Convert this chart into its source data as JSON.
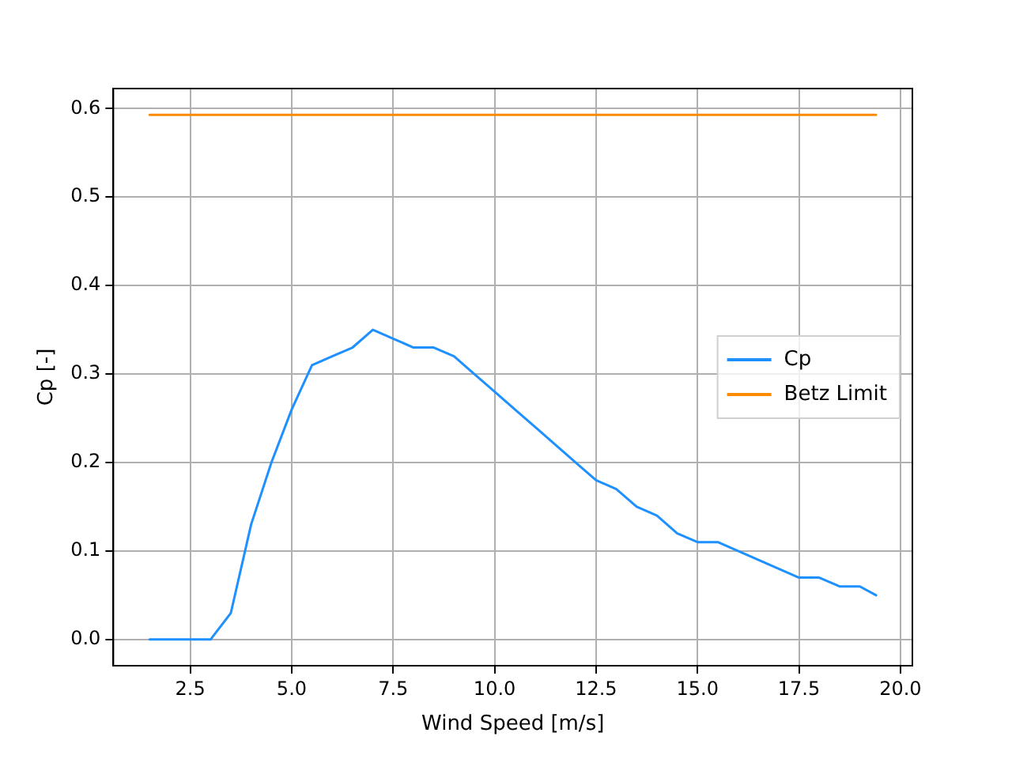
{
  "chart_data": {
    "type": "line",
    "xlabel": "Wind Speed [m/s]",
    "ylabel": "Cp [-]",
    "xlim": [
      0.605,
      20.295
    ],
    "xticks": [
      {
        "value": 2.5,
        "label": "2.5"
      },
      {
        "value": 5,
        "label": "5.0"
      },
      {
        "value": 7.5,
        "label": "7.5"
      },
      {
        "value": 10,
        "label": "10.0"
      },
      {
        "value": 12.5,
        "label": "12.5"
      },
      {
        "value": 15,
        "label": "15.0"
      },
      {
        "value": 17.5,
        "label": "17.5"
      },
      {
        "value": 20,
        "label": "20.0"
      }
    ],
    "ylim": [
      -0.0296,
      0.6226
    ],
    "yticks": [
      {
        "value": 0,
        "label": "0.0"
      },
      {
        "value": 0.1,
        "label": "0.1"
      },
      {
        "value": 0.2,
        "label": "0.2"
      },
      {
        "value": 0.3,
        "label": "0.3"
      },
      {
        "value": 0.4,
        "label": "0.4"
      },
      {
        "value": 0.5,
        "label": "0.5"
      },
      {
        "value": 0.6,
        "label": "0.6"
      }
    ],
    "grid": true,
    "legend": "right",
    "marker": "none",
    "line_style": "solid",
    "series": [
      {
        "name": "Cp",
        "color": "#1e90ff",
        "x": [
          1.5,
          2,
          2.5,
          3,
          3.5,
          4,
          4.5,
          5,
          5.5,
          6,
          6.5,
          7,
          7.5,
          8,
          8.5,
          9,
          9.5,
          10,
          10.5,
          11,
          11.5,
          12,
          12.5,
          13,
          13.5,
          14,
          14.5,
          15,
          15.5,
          16,
          16.5,
          17,
          17.5,
          18,
          18.5,
          19,
          19.4
        ],
        "values": [
          0,
          0,
          0,
          0,
          0.03,
          0.13,
          0.2,
          0.26,
          0.31,
          0.32,
          0.33,
          0.35,
          0.34,
          0.33,
          0.33,
          0.32,
          0.3,
          0.28,
          0.26,
          0.24,
          0.22,
          0.2,
          0.18,
          0.17,
          0.15,
          0.14,
          0.12,
          0.11,
          0.11,
          0.1,
          0.09,
          0.08,
          0.07,
          0.07,
          0.06,
          0.06,
          0.05
        ]
      },
      {
        "name": "Betz Limit",
        "color": "#ff8c00",
        "x": [
          1.5,
          19.4
        ],
        "values": [
          0.593,
          0.593
        ]
      }
    ]
  }
}
